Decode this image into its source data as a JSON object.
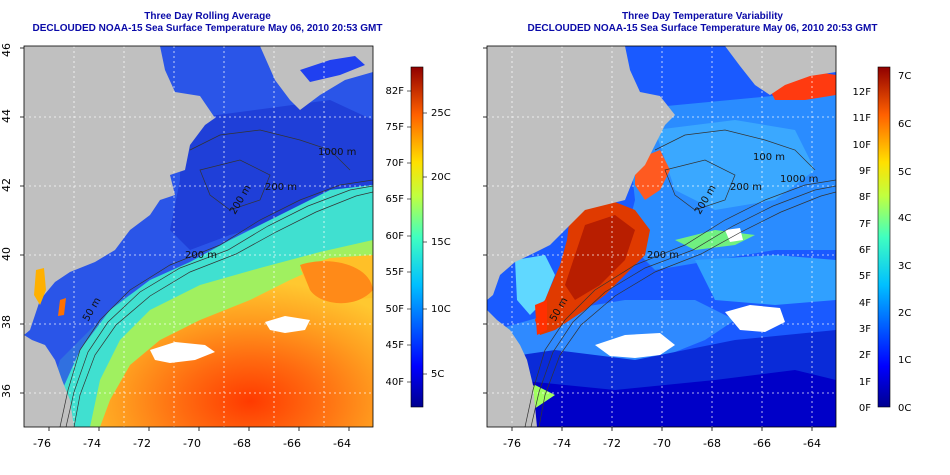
{
  "colors": {
    "land": "#c0c0c0",
    "title": "#0a0aa8",
    "grid": "#ffffff",
    "contour": "#333333"
  },
  "panels": [
    {
      "title1": "Three Day Rolling Average",
      "title2": "DECLOUDED NOAA-15 Sea Surface Temperature May 06, 2010 20:53 GMT",
      "lon_labels": [
        "-76",
        "-74",
        "-72",
        "-70",
        "-68",
        "-66",
        "-64"
      ],
      "lat_labels": [
        "36",
        "38",
        "40",
        "42",
        "44",
        "46"
      ],
      "contour_labels": [
        "50 m",
        "200 m",
        "200 m",
        "1000 m"
      ],
      "colorbar": {
        "scale": "sst",
        "left_labels": [
          "82F",
          "75F",
          "70F",
          "65F",
          "60F",
          "55F",
          "50F",
          "45F",
          "40F"
        ],
        "right_labels": [
          "25C",
          "20C",
          "15C",
          "10C",
          "5C"
        ]
      }
    },
    {
      "title1": "Three Day Temperature Variability",
      "title2": "DECLOUDED NOAA-15 Sea Surface Temperature May 06, 2010 20:53 GMT",
      "lon_labels": [
        "-76",
        "-74",
        "-72",
        "-70",
        "-68",
        "-66",
        "-64"
      ],
      "lat_labels": [
        "36",
        "38",
        "40",
        "42",
        "44",
        "46"
      ],
      "contour_labels": [
        "50 m",
        "200 m",
        "200 m",
        "100 m",
        "1000 m"
      ],
      "colorbar": {
        "scale": "variability",
        "left_labels": [
          "12F",
          "11F",
          "10F",
          "9F",
          "8F",
          "7F",
          "6F",
          "5F",
          "4F",
          "3F",
          "2F",
          "1F",
          "0F"
        ],
        "right_labels": [
          "7C",
          "6C",
          "5C",
          "4C",
          "3C",
          "2C",
          "1C",
          "0C"
        ]
      }
    }
  ]
}
